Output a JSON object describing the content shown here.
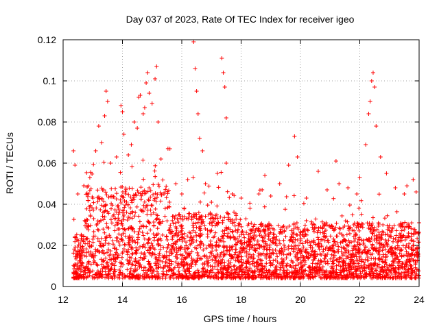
{
  "chart_data": {
    "type": "scatter",
    "title": "Day 037 of 2023, Rate Of TEC Index for receiver igeo",
    "xlabel": "GPS time / hours",
    "ylabel": "ROTI / TECUs",
    "xlim": [
      12,
      24
    ],
    "ylim": [
      0,
      0.12
    ],
    "xticks": [
      "12",
      "14",
      "16",
      "18",
      "20",
      "22",
      "24"
    ],
    "yticks": [
      "0",
      "0.02",
      "0.04",
      "0.06",
      "0.08",
      "0.1",
      "0.12"
    ],
    "grid": true,
    "marker": "+",
    "color": "#ff0000",
    "note": "Dense scatter of several thousand points; x-values below are a representative sample, bulk of values lies between 0.005 and 0.045 TECU/s",
    "series": [
      {
        "name": "ROTI",
        "points": [
          [
            12.35,
            0.066
          ],
          [
            12.4,
            0.059
          ],
          [
            12.5,
            0.045
          ],
          [
            12.7,
            0.049
          ],
          [
            12.9,
            0.053
          ],
          [
            13.1,
            0.066
          ],
          [
            13.2,
            0.078
          ],
          [
            13.3,
            0.07
          ],
          [
            13.4,
            0.083
          ],
          [
            13.45,
            0.095
          ],
          [
            13.5,
            0.09
          ],
          [
            13.6,
            0.06
          ],
          [
            13.8,
            0.063
          ],
          [
            13.95,
            0.088
          ],
          [
            14.0,
            0.085
          ],
          [
            14.05,
            0.074
          ],
          [
            14.2,
            0.064
          ],
          [
            14.3,
            0.069
          ],
          [
            14.4,
            0.08
          ],
          [
            14.5,
            0.077
          ],
          [
            14.55,
            0.092
          ],
          [
            14.6,
            0.093
          ],
          [
            14.7,
            0.084
          ],
          [
            14.75,
            0.087
          ],
          [
            14.8,
            0.099
          ],
          [
            14.85,
            0.104
          ],
          [
            14.9,
            0.094
          ],
          [
            15.0,
            0.089
          ],
          [
            15.1,
            0.101
          ],
          [
            15.15,
            0.107
          ],
          [
            15.2,
            0.08
          ],
          [
            15.3,
            0.062
          ],
          [
            15.4,
            0.045
          ],
          [
            15.6,
            0.067
          ],
          [
            15.8,
            0.05
          ],
          [
            16.0,
            0.045
          ],
          [
            16.2,
            0.052
          ],
          [
            16.4,
            0.119
          ],
          [
            16.45,
            0.106
          ],
          [
            16.5,
            0.095
          ],
          [
            16.55,
            0.084
          ],
          [
            16.6,
            0.072
          ],
          [
            16.7,
            0.066
          ],
          [
            16.8,
            0.05
          ],
          [
            17.0,
            0.041
          ],
          [
            17.2,
            0.055
          ],
          [
            17.35,
            0.111
          ],
          [
            17.4,
            0.104
          ],
          [
            17.45,
            0.097
          ],
          [
            17.5,
            0.082
          ],
          [
            17.5,
            0.06
          ],
          [
            17.7,
            0.045
          ],
          [
            18.0,
            0.043
          ],
          [
            18.3,
            0.038
          ],
          [
            18.6,
            0.045
          ],
          [
            18.8,
            0.054
          ],
          [
            19.0,
            0.044
          ],
          [
            19.3,
            0.05
          ],
          [
            19.6,
            0.059
          ],
          [
            19.8,
            0.073
          ],
          [
            19.9,
            0.063
          ],
          [
            20.2,
            0.043
          ],
          [
            20.6,
            0.056
          ],
          [
            20.9,
            0.047
          ],
          [
            21.2,
            0.061
          ],
          [
            21.3,
            0.05
          ],
          [
            21.6,
            0.048
          ],
          [
            21.9,
            0.045
          ],
          [
            22.0,
            0.053
          ],
          [
            22.2,
            0.069
          ],
          [
            22.3,
            0.084
          ],
          [
            22.35,
            0.09
          ],
          [
            22.4,
            0.1
          ],
          [
            22.45,
            0.104
          ],
          [
            22.5,
            0.097
          ],
          [
            22.55,
            0.078
          ],
          [
            22.7,
            0.063
          ],
          [
            22.9,
            0.055
          ],
          [
            23.2,
            0.048
          ],
          [
            23.5,
            0.045
          ],
          [
            23.8,
            0.052
          ],
          [
            23.9,
            0.046
          ],
          [
            24.0,
            0.031
          ]
        ]
      }
    ]
  }
}
